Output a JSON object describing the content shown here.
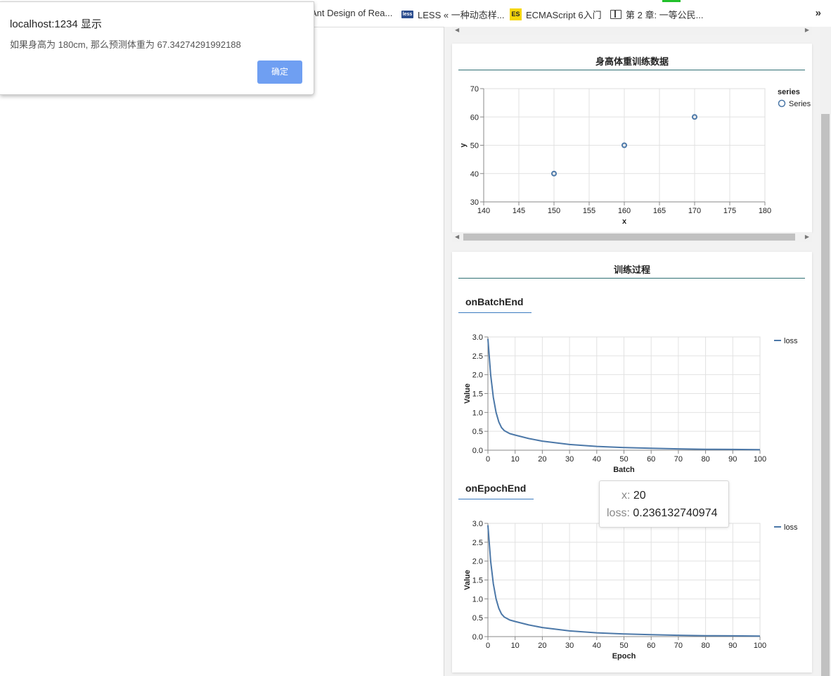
{
  "bookmarks": [
    {
      "label": "Ant Design of Rea...",
      "icon": "react-icon"
    },
    {
      "label": "LESS « 一种动态样...",
      "icon": "less-icon",
      "badge": "less"
    },
    {
      "label": "ECMAScript 6入门",
      "icon": "es-icon",
      "badge": "ES"
    },
    {
      "label": "第 2 章: 一等公民...",
      "icon": "book-icon"
    }
  ],
  "bookmarks_more": "»",
  "dialog": {
    "title": "localhost:1234 显示",
    "message": "如果身高为 180cm, 那么预测体重为 67.34274291992188",
    "ok_label": "确定"
  },
  "scatter_card": {
    "title": "身高体重训练数据"
  },
  "training_card": {
    "title": "训练过程",
    "batch_heading": "onBatchEnd",
    "epoch_heading": "onEpochEnd"
  },
  "tooltip": {
    "x_key": "x:",
    "x_value": "20",
    "loss_key": "loss:",
    "loss_value": "0.236132740974"
  },
  "colors": {
    "series": "#4c78a8",
    "accent_rule": "#2f6f73",
    "subhead_rule": "#3a7bc0",
    "dialog_button": "#6f9ff2"
  },
  "chart_data": [
    {
      "type": "scatter",
      "title": "",
      "xlabel": "x",
      "ylabel": "y",
      "xlim": [
        140,
        180
      ],
      "ylim": [
        30,
        70
      ],
      "xticks": [
        140,
        145,
        150,
        155,
        160,
        165,
        170,
        175,
        180
      ],
      "yticks": [
        30,
        40,
        50,
        60,
        70
      ],
      "grid": true,
      "legend_title": "series",
      "legend_position": "top-right",
      "series": [
        {
          "name": "Series",
          "x": [
            150,
            160,
            170
          ],
          "y": [
            40,
            50,
            60
          ]
        }
      ]
    },
    {
      "type": "line",
      "title": "",
      "xlabel": "Batch",
      "ylabel": "Value",
      "xlim": [
        0,
        100
      ],
      "ylim": [
        0,
        3.0
      ],
      "xticks": [
        0,
        10,
        20,
        30,
        40,
        50,
        60,
        70,
        80,
        90,
        100
      ],
      "yticks": [
        "0.0",
        "0.5",
        "1.0",
        "1.5",
        "2.0",
        "2.5",
        "3.0"
      ],
      "grid": true,
      "legend_position": "top-right",
      "series": [
        {
          "name": "loss",
          "x": [
            0,
            1,
            2,
            3,
            4,
            5,
            6,
            8,
            10,
            15,
            20,
            30,
            40,
            50,
            60,
            70,
            80,
            90,
            100
          ],
          "y": [
            2.95,
            2.0,
            1.4,
            1.0,
            0.75,
            0.6,
            0.52,
            0.44,
            0.4,
            0.31,
            0.24,
            0.15,
            0.1,
            0.07,
            0.05,
            0.035,
            0.025,
            0.02,
            0.015
          ]
        }
      ]
    },
    {
      "type": "line",
      "title": "",
      "xlabel": "Epoch",
      "ylabel": "Value",
      "xlim": [
        0,
        100
      ],
      "ylim": [
        0,
        3.0
      ],
      "xticks": [
        0,
        10,
        20,
        30,
        40,
        50,
        60,
        70,
        80,
        90,
        100
      ],
      "yticks": [
        "0.0",
        "0.5",
        "1.0",
        "1.5",
        "2.0",
        "2.5",
        "3.0"
      ],
      "grid": true,
      "legend_position": "top-right",
      "series": [
        {
          "name": "loss",
          "x": [
            0,
            1,
            2,
            3,
            4,
            5,
            6,
            8,
            10,
            15,
            20,
            30,
            40,
            50,
            60,
            70,
            80,
            90,
            100
          ],
          "y": [
            2.95,
            2.0,
            1.4,
            1.0,
            0.75,
            0.6,
            0.52,
            0.44,
            0.4,
            0.31,
            0.24,
            0.15,
            0.1,
            0.07,
            0.05,
            0.035,
            0.025,
            0.02,
            0.015
          ]
        }
      ]
    }
  ]
}
